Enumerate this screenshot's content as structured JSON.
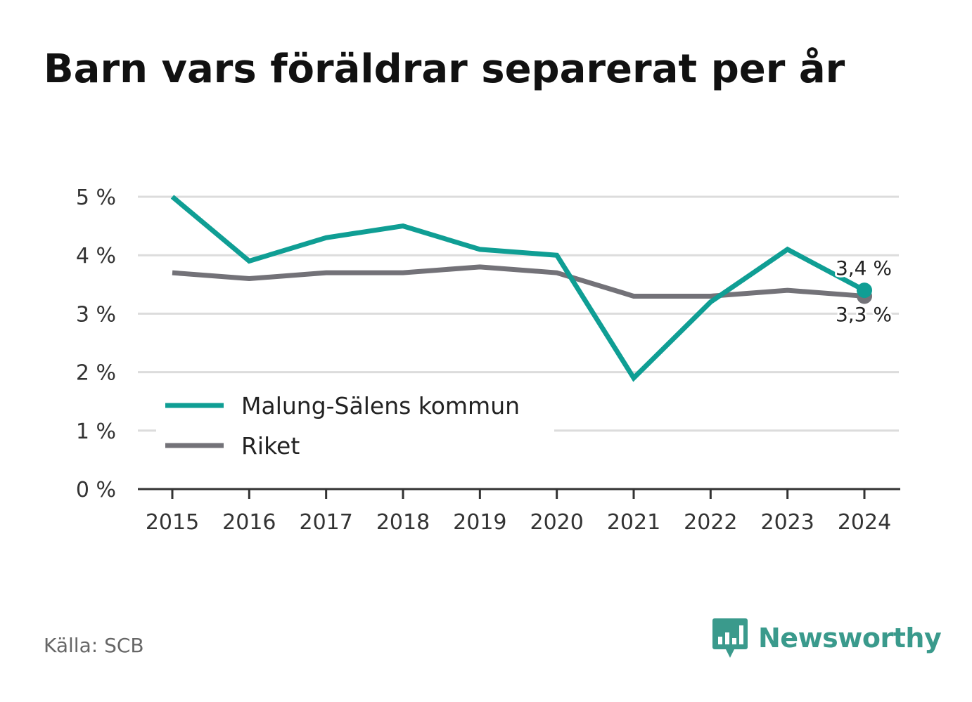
{
  "chart_data": {
    "type": "line",
    "title": "Barn vars föräldrar separerat per år",
    "categories": [
      "2015",
      "2016",
      "2017",
      "2018",
      "2019",
      "2020",
      "2021",
      "2022",
      "2023",
      "2024"
    ],
    "series": [
      {
        "name": "Malung-Sälens kommun",
        "values": [
          5.0,
          3.9,
          4.3,
          4.5,
          4.1,
          4.0,
          1.9,
          3.2,
          4.1,
          3.4
        ],
        "color": "#0f9e94",
        "end_label": "3,4 %"
      },
      {
        "name": "Riket",
        "values": [
          3.7,
          3.6,
          3.7,
          3.7,
          3.8,
          3.7,
          3.3,
          3.3,
          3.4,
          3.3
        ],
        "color": "#737278",
        "end_label": "3,3 %"
      }
    ],
    "y_ticks": [
      "0 %",
      "1 %",
      "2 %",
      "3 %",
      "4 %",
      "5 %"
    ],
    "ylim": [
      0,
      5
    ],
    "grid": true,
    "legend_position": "bottom-left",
    "xlabel": "",
    "ylabel": ""
  },
  "source": "Källa: SCB",
  "brand": {
    "name": "Newsworthy",
    "color": "#3a9a8c",
    "icon": "bar-chart-speech-bubble-icon"
  }
}
